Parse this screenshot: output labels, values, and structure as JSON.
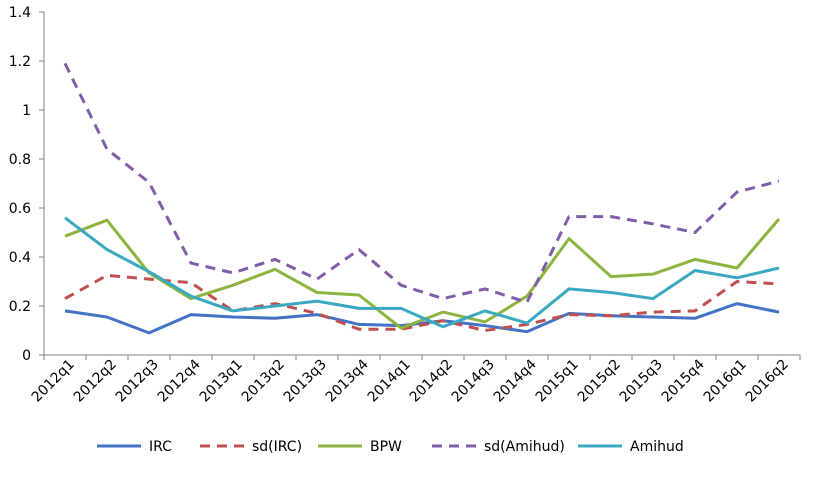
{
  "chart_data": {
    "type": "line",
    "categories": [
      "2012q1",
      "2012q2",
      "2012q3",
      "2012q4",
      "2013q1",
      "2013q2",
      "2013q3",
      "2013q4",
      "2014q1",
      "2014q2",
      "2014q3",
      "2014q4",
      "2015q1",
      "2015q2",
      "2015q3",
      "2015q4",
      "2016q1",
      "2016q2"
    ],
    "ylim": [
      0,
      1.4
    ],
    "yticks": [
      "0",
      "0.2",
      "0.4",
      "0.6",
      "0.8",
      "1",
      "1.2",
      "1.4"
    ],
    "ytick_values": [
      0,
      0.2,
      0.4,
      0.6,
      0.8,
      1.0,
      1.2,
      1.4
    ],
    "grid": false,
    "legend_position": "bottom",
    "series": [
      {
        "name": "IRC",
        "color": "#4472C4",
        "dash": "solid",
        "values": [
          0.18,
          0.155,
          0.09,
          0.165,
          0.155,
          0.15,
          0.165,
          0.125,
          0.12,
          0.14,
          0.12,
          0.095,
          0.17,
          0.16,
          0.155,
          0.15,
          0.21,
          0.175
        ]
      },
      {
        "name": "sd(IRC)",
        "color": "#C0504D",
        "dash": "dashed",
        "values": [
          0.23,
          0.325,
          0.31,
          0.295,
          0.18,
          0.21,
          0.17,
          0.105,
          0.105,
          0.14,
          0.1,
          0.125,
          0.165,
          0.16,
          0.175,
          0.18,
          0.3,
          0.29
        ]
      },
      {
        "name": "BPW",
        "color": "#8DB43E",
        "dash": "solid",
        "values": [
          0.485,
          0.55,
          0.335,
          0.23,
          0.285,
          0.35,
          0.255,
          0.245,
          0.11,
          0.175,
          0.135,
          0.24,
          0.475,
          0.32,
          0.33,
          0.39,
          0.355,
          0.555
        ]
      },
      {
        "name": "sd(Amihud)",
        "color": "#7F5DA8",
        "dash": "dashed",
        "values": [
          1.19,
          0.84,
          0.705,
          0.375,
          0.335,
          0.39,
          0.31,
          0.43,
          0.285,
          0.23,
          0.27,
          0.215,
          0.565,
          0.565,
          0.535,
          0.5,
          0.665,
          0.71
        ]
      },
      {
        "name": "Amihud",
        "color": "#3AA8C1",
        "dash": "solid",
        "values": [
          0.56,
          0.43,
          0.34,
          0.24,
          0.18,
          0.2,
          0.22,
          0.19,
          0.19,
          0.115,
          0.18,
          0.13,
          0.27,
          0.255,
          0.23,
          0.345,
          0.315,
          0.355
        ]
      }
    ]
  }
}
